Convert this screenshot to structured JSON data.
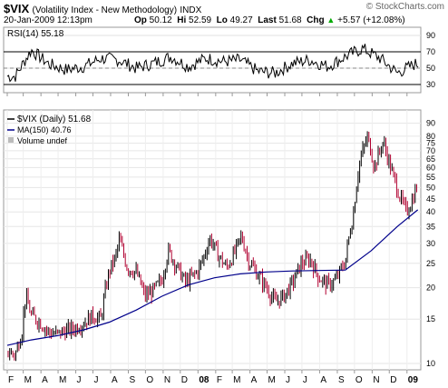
{
  "header": {
    "symbol": "$VIX",
    "name": "(Volatility Index - New Methodology)",
    "exchange": "INDX",
    "watermark": "© StockCharts.com",
    "date": "20-Jan-2009 12:13pm",
    "op_label": "Op",
    "op": "50.12",
    "hi_label": "Hi",
    "hi": "52.59",
    "lo_label": "Lo",
    "lo": "49.27",
    "last_label": "Last",
    "last": "51.68",
    "chg_label": "Chg",
    "chg": "+5.57 (+12.08%)",
    "chg_arrow": "up-arrow-icon"
  },
  "chart_data": [
    {
      "type": "line",
      "panel": "rsi",
      "legend": "RSI(14) 55.18",
      "ylim": [
        20,
        100
      ],
      "yticks": [
        "90",
        "70",
        "50",
        "30"
      ],
      "reference_lines": [
        70,
        30
      ],
      "dashed_line": 50,
      "colors": {
        "line": "#000000",
        "ref": "#000000",
        "mid": "#888888"
      },
      "series": [
        {
          "name": "RSI(14)",
          "x": [
            "2007-02",
            "2007-03",
            "2007-04",
            "2007-05",
            "2007-06",
            "2007-07",
            "2007-08",
            "2007-09",
            "2007-10",
            "2007-11",
            "2007-12",
            "2008-01",
            "2008-02",
            "2008-03",
            "2008-04",
            "2008-05",
            "2008-06",
            "2008-07",
            "2008-08",
            "2008-09",
            "2008-10",
            "2008-11",
            "2008-12",
            "2009-01"
          ],
          "values": [
            40,
            72,
            55,
            48,
            52,
            62,
            60,
            50,
            56,
            64,
            52,
            62,
            58,
            60,
            46,
            44,
            56,
            60,
            52,
            64,
            74,
            62,
            44,
            55
          ]
        }
      ]
    },
    {
      "type": "line",
      "panel": "price",
      "legend": [
        "$VIX (Daily) 51.68",
        "MA(150) 40.76",
        "Volume undef"
      ],
      "yscale": "log",
      "ylim": [
        10,
        92
      ],
      "yticks": [
        "90",
        "80",
        "75",
        "70",
        "65",
        "60",
        "55",
        "50",
        "45",
        "40",
        "35",
        "30",
        "25",
        "20",
        "15",
        "10"
      ],
      "colors": {
        "price_up": "#000000",
        "price_down": "#b00030",
        "ma": "#00008b"
      },
      "x_ticks": [
        "F",
        "M",
        "A",
        "M",
        "J",
        "J",
        "A",
        "S",
        "O",
        "N",
        "D",
        "08",
        "F",
        "M",
        "A",
        "M",
        "J",
        "J",
        "A",
        "S",
        "O",
        "N",
        "D",
        "09"
      ],
      "series": [
        {
          "name": "$VIX (Daily)",
          "x": [
            "2007-02-01",
            "2007-02-15",
            "2007-02-27",
            "2007-03-05",
            "2007-03-15",
            "2007-03-30",
            "2007-04-15",
            "2007-04-30",
            "2007-05-15",
            "2007-05-30",
            "2007-06-15",
            "2007-06-30",
            "2007-07-15",
            "2007-07-30",
            "2007-08-10",
            "2007-08-16",
            "2007-08-30",
            "2007-09-15",
            "2007-09-30",
            "2007-10-15",
            "2007-10-30",
            "2007-11-10",
            "2007-11-26",
            "2007-12-10",
            "2007-12-30",
            "2008-01-10",
            "2008-01-22",
            "2008-02-05",
            "2008-02-20",
            "2008-03-05",
            "2008-03-17",
            "2008-03-30",
            "2008-04-15",
            "2008-04-30",
            "2008-05-15",
            "2008-05-30",
            "2008-06-15",
            "2008-06-30",
            "2008-07-15",
            "2008-07-30",
            "2008-08-15",
            "2008-08-30",
            "2008-09-15",
            "2008-09-29",
            "2008-10-10",
            "2008-10-24",
            "2008-11-05",
            "2008-11-20",
            "2008-12-05",
            "2008-12-20",
            "2008-12-31",
            "2009-01-10",
            "2009-01-20"
          ],
          "values": [
            11.2,
            10.8,
            13.5,
            18.5,
            15.5,
            14.6,
            13.3,
            13.1,
            13.5,
            13.8,
            14.5,
            15.5,
            15.0,
            23.5,
            26.5,
            31.0,
            24.0,
            23.0,
            18.5,
            19.5,
            21.5,
            28.0,
            24.0,
            21.0,
            23.0,
            26.0,
            31.5,
            27.0,
            24.0,
            27.5,
            32.0,
            25.5,
            22.5,
            20.0,
            17.5,
            18.5,
            21.0,
            25.0,
            26.0,
            22.0,
            20.5,
            21.5,
            25.5,
            39.0,
            63.0,
            79.5,
            60.0,
            76.0,
            58.0,
            45.5,
            40.0,
            44.5,
            51.68
          ]
        },
        {
          "name": "MA(150)",
          "x": [
            "2007-02-01",
            "2007-03-15",
            "2007-04-30",
            "2007-06-15",
            "2007-07-30",
            "2007-09-15",
            "2007-10-30",
            "2007-12-15",
            "2008-01-30",
            "2008-03-15",
            "2008-04-30",
            "2008-06-15",
            "2008-07-30",
            "2008-09-15",
            "2008-10-30",
            "2008-12-15",
            "2009-01-20"
          ],
          "values": [
            11.8,
            12.4,
            12.9,
            13.6,
            14.6,
            16.3,
            18.5,
            20.5,
            21.9,
            22.7,
            23.1,
            23.3,
            23.4,
            23.5,
            28.0,
            35.0,
            40.76
          ]
        }
      ]
    }
  ]
}
